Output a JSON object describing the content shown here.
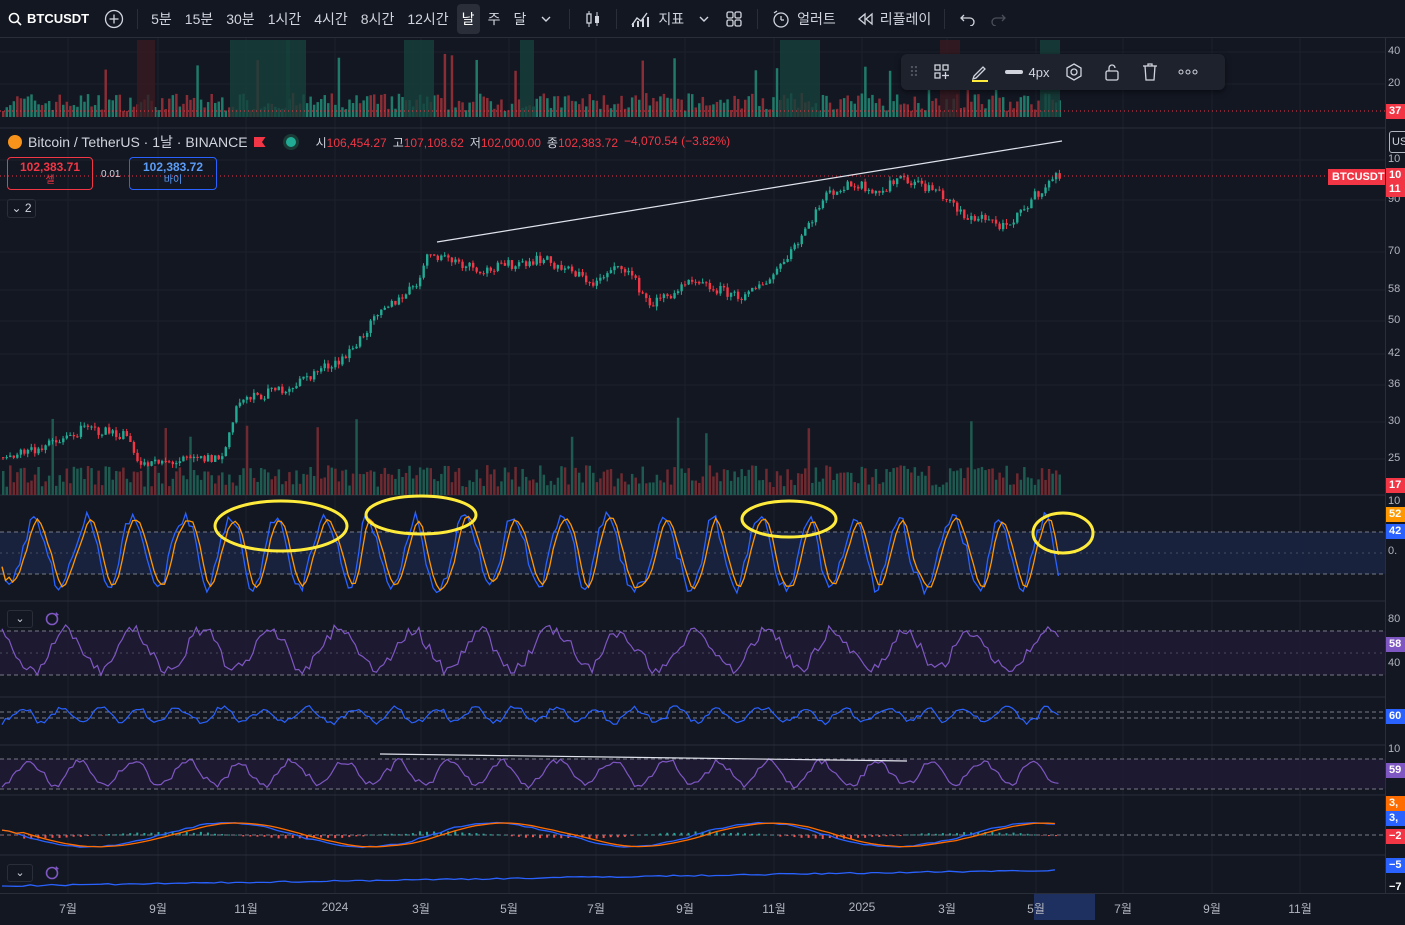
{
  "toolbar": {
    "symbol": "BTCUSDT",
    "intervals": [
      "5분",
      "15분",
      "30분",
      "1시간",
      "4시간",
      "8시간",
      "12시간",
      "날",
      "주",
      "달"
    ],
    "active_interval": "날",
    "indicators_label": "지표",
    "alert_label": "얼러트",
    "replay_label": "리플레이"
  },
  "legend": {
    "title": "Bitcoin / TetherUS · 1날 · BINANCE",
    "open_key": "시",
    "open": "106,454.27",
    "high_key": "고",
    "high": "107,108.62",
    "low_key": "저",
    "low": "102,000.00",
    "close_key": "종",
    "close": "102,383.72",
    "change": "−4,070.54 (−3.82%)"
  },
  "trade": {
    "sell_price": "102,383.71",
    "sell_label": "셀",
    "spread": "0.01",
    "buy_price": "102,383.72",
    "buy_label": "바이"
  },
  "collapse_label": "2",
  "symbol_tag": "BTCUSDT",
  "currency_tag": "US",
  "draw_toolbar": {
    "width_label": "4px"
  },
  "price_scale": {
    "labels": [
      "40",
      "20",
      "10",
      "90",
      "70",
      "58",
      "50",
      "42",
      "36",
      "30",
      "25",
      "10",
      "0.",
      "80",
      "40",
      "10"
    ],
    "tags": [
      {
        "text": "37",
        "color": "#f23645"
      },
      {
        "text": "10",
        "color": "#f23645"
      },
      {
        "text": "11",
        "color": "#f23645"
      },
      {
        "text": "17",
        "color": "#f23645"
      },
      {
        "text": "52",
        "color": "#ff9800"
      },
      {
        "text": "42",
        "color": "#2962ff"
      },
      {
        "text": "58",
        "color": "#7e57c2"
      },
      {
        "text": "60",
        "color": "#2962ff"
      },
      {
        "text": "59",
        "color": "#7e57c2"
      },
      {
        "text": "3,",
        "color": "#ff6d00"
      },
      {
        "text": "3,",
        "color": "#2962ff"
      },
      {
        "text": "−2",
        "color": "#f23645"
      },
      {
        "text": "−5",
        "color": "#2962ff"
      },
      {
        "text": "−7",
        "color": "#131722"
      }
    ]
  },
  "time_axis": [
    "7월",
    "9월",
    "11월",
    "2024",
    "3월",
    "5월",
    "7월",
    "9월",
    "11월",
    "2025",
    "3월",
    "5월",
    "7월",
    "9월",
    "11월"
  ],
  "colors": {
    "up": "#22ab94",
    "down": "#f23645",
    "bg": "#131722",
    "stoch_k": "#2962ff",
    "stoch_d": "#ff9800",
    "rsi": "#7e57c2",
    "highlight": "#ffeb3b"
  },
  "chart_data": {
    "type": "candlestick",
    "series_name": "BTCUSDT",
    "interval": "1D",
    "price_path": [
      [
        0,
        27
      ],
      [
        0.04,
        29
      ],
      [
        0.06,
        31
      ],
      [
        0.09,
        30
      ],
      [
        0.1,
        26
      ],
      [
        0.16,
        27
      ],
      [
        0.17,
        35
      ],
      [
        0.21,
        38
      ],
      [
        0.25,
        44
      ],
      [
        0.27,
        52
      ],
      [
        0.3,
        62
      ],
      [
        0.31,
        72
      ],
      [
        0.35,
        66
      ],
      [
        0.39,
        70
      ],
      [
        0.43,
        62
      ],
      [
        0.45,
        68
      ],
      [
        0.47,
        56
      ],
      [
        0.5,
        62
      ],
      [
        0.54,
        58
      ],
      [
        0.56,
        65
      ],
      [
        0.58,
        78
      ],
      [
        0.6,
        96
      ],
      [
        0.62,
        100
      ],
      [
        0.64,
        96
      ],
      [
        0.65,
        104
      ],
      [
        0.68,
        96
      ],
      [
        0.7,
        84
      ],
      [
        0.71,
        86
      ],
      [
        0.73,
        80
      ],
      [
        0.75,
        95
      ],
      [
        0.77,
        106
      ]
    ],
    "last_close": 102383.72
  }
}
